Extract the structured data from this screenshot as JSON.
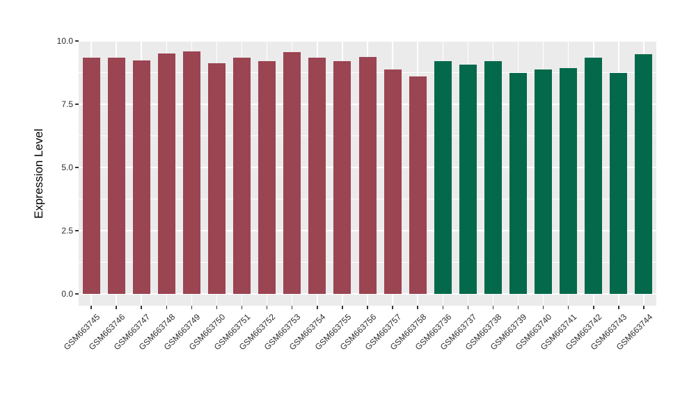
{
  "chart_data": {
    "type": "bar",
    "title": "",
    "xlabel": "",
    "ylabel": "Expression Level",
    "ylim": [
      0,
      10
    ],
    "yticks": [
      {
        "value": 0,
        "label": "0.0"
      },
      {
        "value": 2.5,
        "label": "2.5"
      },
      {
        "value": 5,
        "label": "5.0"
      },
      {
        "value": 7.5,
        "label": "7.5"
      },
      {
        "value": 10,
        "label": "10.0"
      }
    ],
    "minor_gridline_values": [
      1.25,
      3.75,
      6.25,
      8.75
    ],
    "grid": "on",
    "legend_position": "none",
    "panel_background": "#EBEBEB",
    "gridline_color": "#FFFFFF",
    "bar_colors": {
      "red": "#9B4452",
      "green": "#04694B"
    },
    "bars": [
      {
        "label": "GSM663745",
        "value": 9.33,
        "color": "red"
      },
      {
        "label": "GSM663746",
        "value": 9.33,
        "color": "red"
      },
      {
        "label": "GSM663747",
        "value": 9.24,
        "color": "red"
      },
      {
        "label": "GSM663748",
        "value": 9.5,
        "color": "red"
      },
      {
        "label": "GSM663749",
        "value": 9.58,
        "color": "red"
      },
      {
        "label": "GSM663750",
        "value": 9.12,
        "color": "red"
      },
      {
        "label": "GSM663751",
        "value": 9.33,
        "color": "red"
      },
      {
        "label": "GSM663752",
        "value": 9.21,
        "color": "red"
      },
      {
        "label": "GSM663753",
        "value": 9.55,
        "color": "red"
      },
      {
        "label": "GSM663754",
        "value": 9.33,
        "color": "red"
      },
      {
        "label": "GSM663755",
        "value": 9.2,
        "color": "red"
      },
      {
        "label": "GSM663756",
        "value": 9.38,
        "color": "red"
      },
      {
        "label": "GSM663757",
        "value": 8.86,
        "color": "red"
      },
      {
        "label": "GSM663758",
        "value": 8.6,
        "color": "red"
      },
      {
        "label": "GSM663736",
        "value": 9.2,
        "color": "green"
      },
      {
        "label": "GSM663737",
        "value": 9.07,
        "color": "green"
      },
      {
        "label": "GSM663738",
        "value": 9.2,
        "color": "green"
      },
      {
        "label": "GSM663739",
        "value": 8.74,
        "color": "green"
      },
      {
        "label": "GSM663740",
        "value": 8.87,
        "color": "green"
      },
      {
        "label": "GSM663741",
        "value": 8.94,
        "color": "green"
      },
      {
        "label": "GSM663742",
        "value": 9.33,
        "color": "green"
      },
      {
        "label": "GSM663743",
        "value": 8.74,
        "color": "green"
      },
      {
        "label": "GSM663744",
        "value": 9.47,
        "color": "green"
      }
    ]
  }
}
